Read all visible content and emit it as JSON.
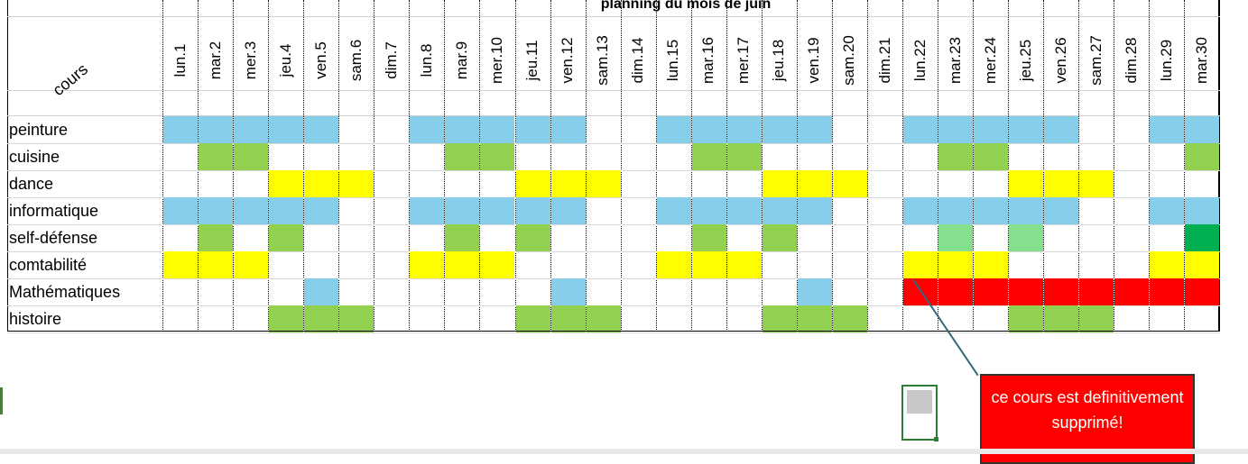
{
  "title": "planning du mois de juin",
  "corner_label": "cours",
  "days": [
    "lun.1",
    "mar.2",
    "mer.3",
    "jeu.4",
    "ven.5",
    "sam.6",
    "dim.7",
    "lun.8",
    "mar.9",
    "mer.10",
    "jeu.11",
    "ven.12",
    "sam.13",
    "dim.14",
    "lun.15",
    "mar.16",
    "mer.17",
    "jeu.18",
    "ven.19",
    "sam.20",
    "dim.21",
    "lun.22",
    "mar.23",
    "mer.24",
    "jeu.25",
    "ven.26",
    "sam.27",
    "dim.28",
    "lun.29",
    "mar.30"
  ],
  "colors": {
    "blue": "#87ceeb",
    "green": "#92d050",
    "yellow": "#ffff00",
    "red": "#ff0000",
    "lightgreen": "#85e08e",
    "darkgreen": "#00b050"
  },
  "rows": [
    {
      "name": "peinture",
      "cells": {
        "blue": [
          0,
          1,
          2,
          3,
          4,
          7,
          8,
          9,
          10,
          11,
          14,
          15,
          16,
          17,
          18,
          21,
          22,
          23,
          24,
          25,
          28,
          29
        ]
      }
    },
    {
      "name": "cuisine",
      "cells": {
        "green": [
          1,
          2,
          8,
          9,
          15,
          16,
          22,
          23,
          29
        ]
      }
    },
    {
      "name": "dance",
      "cells": {
        "yellow": [
          3,
          4,
          5,
          10,
          11,
          12,
          17,
          18,
          19,
          24,
          25,
          26
        ]
      }
    },
    {
      "name": "informatique",
      "cells": {
        "blue": [
          0,
          1,
          2,
          3,
          4,
          7,
          8,
          9,
          10,
          11,
          14,
          15,
          16,
          17,
          18,
          21,
          22,
          23,
          24,
          25,
          28,
          29
        ]
      }
    },
    {
      "name": "self-défense",
      "cells": {
        "green": [
          1,
          3,
          8,
          10,
          15,
          17
        ],
        "lightgreen": [
          22,
          24
        ],
        "darkgreen": [
          29
        ]
      }
    },
    {
      "name": "comtabilité",
      "cells": {
        "yellow": [
          0,
          1,
          2,
          7,
          8,
          9,
          14,
          15,
          16,
          21,
          22,
          23,
          28,
          29
        ]
      }
    },
    {
      "name": "Mathématiques",
      "cells": {
        "blue": [
          4,
          11,
          18
        ],
        "red": [
          21,
          22,
          23,
          24,
          25,
          26,
          27,
          28,
          29
        ]
      }
    },
    {
      "name": "histoire",
      "cells": {
        "green": [
          3,
          4,
          5,
          10,
          11,
          12,
          17,
          18,
          19,
          24,
          25,
          26
        ]
      }
    }
  ],
  "callout": {
    "text": "ce cours est definitivement supprimé!"
  }
}
